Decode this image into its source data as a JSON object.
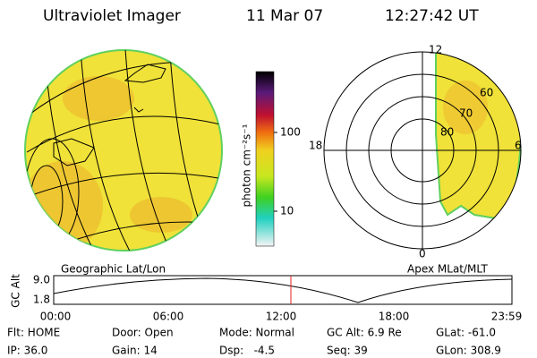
{
  "header": {
    "title": "Ultraviolet Imager",
    "date": "11 Mar 07",
    "time": "12:27:42 UT"
  },
  "colorbar": {
    "label": "photon cm⁻²s⁻¹",
    "ticks": [
      "100",
      "10"
    ]
  },
  "left_panel": {
    "label": "Geographic Lat/Lon"
  },
  "right_panel": {
    "label": "Apex MLat/MLT",
    "mlt_labels": [
      "12",
      "18",
      "6",
      "0"
    ],
    "lat_labels": [
      "60",
      "70",
      "80"
    ]
  },
  "timeline": {
    "axis_label": "GC Alt",
    "yticks": [
      "9.0",
      "1.8"
    ],
    "xticks": [
      "00:00",
      "06:00",
      "12:00",
      "18:00",
      "23:59"
    ]
  },
  "footer": {
    "rows": [
      [
        "Flt: HOME",
        "Door: Open",
        "Mode: Normal",
        "GC Alt: 6.9 Re",
        "GLat: -61.0"
      ],
      [
        "IP: 36.0",
        "Gain: 14",
        "Dsp:   -4.5",
        "Seq: 39",
        "GLon: 308.9"
      ]
    ]
  }
}
